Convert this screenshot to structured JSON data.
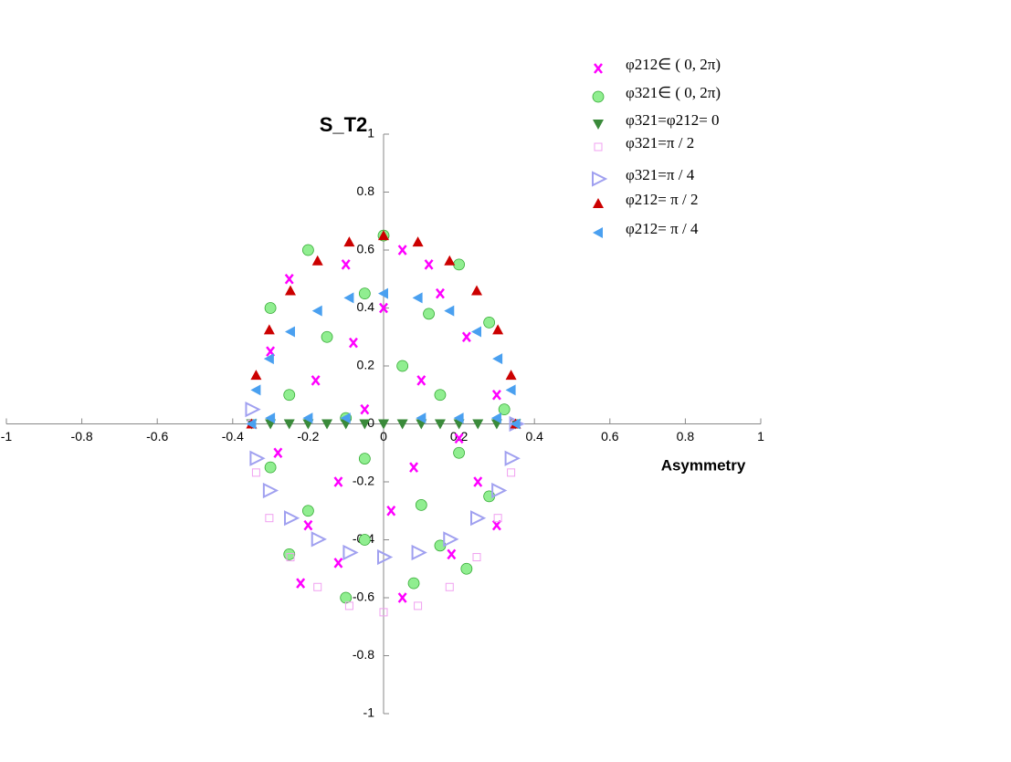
{
  "chart_data": {
    "type": "scatter",
    "xlabel": "Asymmetry",
    "ylabel": "S_T2",
    "xlim": [
      -1,
      1
    ],
    "ylim": [
      -1,
      1
    ],
    "xticks": [
      -1,
      -0.8,
      -0.6,
      -0.4,
      -0.2,
      0,
      0.2,
      0.4,
      0.6,
      0.8,
      1
    ],
    "yticks": [
      -1,
      -0.8,
      -0.6,
      -0.4,
      -0.2,
      0,
      0.2,
      0.4,
      0.6,
      0.8,
      1
    ],
    "legend": "top-right",
    "series": [
      {
        "name": "φ212∈ ( 0, 2π)",
        "color": "#ff00ff",
        "marker": "x",
        "x": [
          -0.25,
          -0.1,
          0.05,
          0.15,
          -0.3,
          0,
          0.22,
          -0.18,
          0.1,
          0.3,
          -0.05,
          -0.28,
          -0.12,
          0.08,
          0.25,
          -0.2,
          0.02,
          0.18,
          -0.12,
          0.05,
          -0.22,
          0.3,
          0.12,
          -0.08,
          0.2
        ],
        "values": [
          0.5,
          0.55,
          0.6,
          0.45,
          0.25,
          0.4,
          0.3,
          0.15,
          0.15,
          0.1,
          0.05,
          -0.1,
          -0.2,
          -0.15,
          -0.2,
          -0.35,
          -0.3,
          -0.45,
          -0.48,
          -0.6,
          -0.55,
          -0.35,
          0.55,
          0.28,
          -0.05
        ]
      },
      {
        "name": "φ321∈ ( 0, 2π)",
        "color": "#90ee90",
        "marker": "circle",
        "x": [
          -0.2,
          0,
          0.2,
          -0.3,
          -0.05,
          0.12,
          0.28,
          -0.15,
          0.05,
          -0.25,
          0.15,
          0.32,
          -0.1,
          -0.3,
          -0.05,
          0.2,
          -0.2,
          0.1,
          0.28,
          -0.25,
          -0.05,
          0.15,
          -0.1,
          0.08,
          0.22
        ],
        "values": [
          0.6,
          0.65,
          0.55,
          0.4,
          0.45,
          0.38,
          0.35,
          0.3,
          0.2,
          0.1,
          0.1,
          0.05,
          0.02,
          -0.15,
          -0.12,
          -0.1,
          -0.3,
          -0.28,
          -0.25,
          -0.45,
          -0.4,
          -0.42,
          -0.6,
          -0.55,
          -0.5
        ]
      },
      {
        "name": "φ321=φ212= 0",
        "color": "#3a8a3a",
        "marker": "tri-down",
        "x": [
          -0.35,
          -0.3,
          -0.25,
          -0.2,
          -0.15,
          -0.1,
          -0.05,
          0,
          0.05,
          0.1,
          0.15,
          0.2,
          0.25,
          0.3,
          0.35
        ],
        "values": [
          0,
          0,
          0,
          0,
          0,
          0,
          0,
          0,
          0,
          0,
          0,
          0,
          0,
          0,
          0
        ]
      },
      {
        "name": "φ321=π / 2",
        "color": "#f0a0f0",
        "marker": "square",
        "x": [
          0.35,
          0.338,
          0.303,
          0.247,
          0.175,
          0.091,
          0,
          -0.091,
          -0.175,
          -0.247,
          -0.303,
          -0.338,
          -0.35
        ],
        "values": [
          0,
          -0.168,
          -0.325,
          -0.46,
          -0.563,
          -0.628,
          -0.65,
          -0.628,
          -0.563,
          -0.46,
          -0.325,
          -0.168,
          0
        ]
      },
      {
        "name": "φ321=π / 4",
        "color": "#a0a0f0",
        "marker": "tri-right",
        "x": [
          0.35,
          0.338,
          0.303,
          0.247,
          0.175,
          0.091,
          0,
          -0.091,
          -0.175,
          -0.247,
          -0.303,
          -0.338,
          -0.35
        ],
        "values": [
          0,
          -0.119,
          -0.23,
          -0.325,
          -0.398,
          -0.444,
          -0.46,
          -0.444,
          -0.398,
          -0.325,
          -0.23,
          -0.119,
          0.05
        ]
      },
      {
        "name": "φ212= π / 2",
        "color": "#cc0000",
        "marker": "tri-up",
        "x": [
          0.35,
          0.338,
          0.303,
          0.247,
          0.175,
          0.091,
          0,
          -0.091,
          -0.175,
          -0.247,
          -0.303,
          -0.338,
          -0.35
        ],
        "values": [
          0,
          0.168,
          0.325,
          0.46,
          0.563,
          0.628,
          0.65,
          0.628,
          0.563,
          0.46,
          0.325,
          0.168,
          0
        ]
      },
      {
        "name": "φ212= π / 4",
        "color": "#4aa0f0",
        "marker": "tri-left",
        "x": [
          0.35,
          0.338,
          0.303,
          0.247,
          0.175,
          0.091,
          0,
          -0.091,
          -0.175,
          -0.247,
          -0.303,
          -0.338,
          -0.35,
          -0.3,
          -0.2,
          -0.1,
          0.1,
          0.2,
          0.3
        ],
        "values": [
          0,
          0.117,
          0.225,
          0.318,
          0.39,
          0.435,
          0.45,
          0.435,
          0.39,
          0.318,
          0.225,
          0.117,
          0,
          0.02,
          0.02,
          0.02,
          0.02,
          0.02,
          0.02
        ]
      }
    ]
  }
}
